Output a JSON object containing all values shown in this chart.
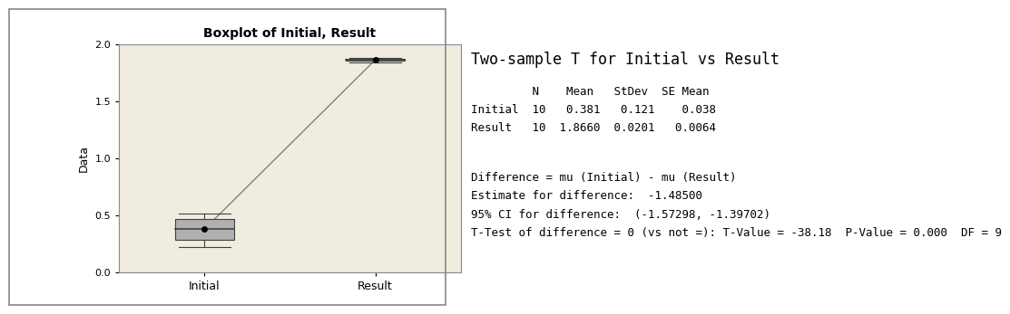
{
  "title": "Boxplot of Initial, Result",
  "ylabel": "Data",
  "bg_color": "#f0ede0",
  "plot_bg_color": "#f0ede0",
  "categories": [
    "Initial",
    "Result"
  ],
  "initial_stats": {
    "mean": 0.381,
    "median": 0.38,
    "q1": 0.29,
    "q3": 0.47,
    "whisker_low": 0.22,
    "whisker_high": 0.52,
    "min": 0.22,
    "max": 0.52
  },
  "result_stats": {
    "mean": 1.866,
    "median": 1.866,
    "q1": 1.855,
    "q3": 1.875,
    "whisker_low": 1.845,
    "whisker_high": 1.885,
    "min": 1.845,
    "max": 1.885
  },
  "ylim": [
    0.0,
    2.0
  ],
  "yticks": [
    0.0,
    0.5,
    1.0,
    1.5,
    2.0
  ],
  "box_color": "#b0b0b0",
  "median_color": "#404040",
  "mean_color": "#000000",
  "line_color": "#808080",
  "stats_title": "Two-sample T for Initial vs Result",
  "stats_header": "         N    Mean   StDev  SE Mean",
  "stats_initial": "Initial  10   0.381   0.121    0.038",
  "stats_result": "Result   10  1.8660  0.0201   0.0064",
  "stats_blank": "",
  "stats_diff1": "Difference = mu (Initial) - mu (Result)",
  "stats_diff2": "Estimate for difference:  -1.48500",
  "stats_diff3": "95% CI for difference:  (-1.57298, -1.39702)",
  "stats_diff4": "T-Test of difference = 0 (vs not =): T-Value = -38.18  P-Value = 0.000  DF = 9"
}
